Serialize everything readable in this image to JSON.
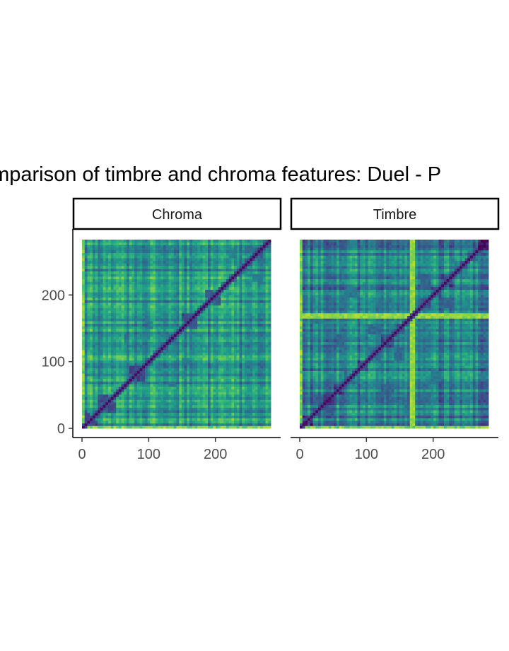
{
  "chart_data": {
    "type": "heatmap",
    "title": "Comparison of timbre and chroma features: Duel - P",
    "xlabel": "",
    "ylabel": "",
    "colormap": "viridis",
    "xlim": [
      0,
      283
    ],
    "ylim": [
      0,
      283
    ],
    "x_ticks": [
      0,
      100,
      200
    ],
    "y_ticks": [
      0,
      100,
      200
    ],
    "x_tick_labels": [
      "0",
      "100",
      "200"
    ],
    "y_tick_labels": [
      "0",
      "100",
      "200"
    ],
    "grid": false,
    "panels": [
      {
        "name": "Chroma",
        "segments": [
          0,
          12,
          24,
          38,
          50,
          62,
          72,
          84,
          96,
          106,
          118,
          128,
          140,
          150,
          160,
          174,
          186,
          196,
          208,
          220,
          232,
          244,
          256,
          270,
          283
        ],
        "blocks": [
          [
            0,
            1,
            0.2
          ],
          [
            2,
            3,
            0.22
          ],
          [
            6,
            7,
            0.21
          ],
          [
            13,
            14,
            0.24
          ],
          [
            16,
            17,
            0.3
          ],
          [
            5,
            11,
            0.42
          ],
          [
            8,
            13,
            0.45
          ],
          [
            19,
            22,
            0.44
          ]
        ],
        "base_level": 0.52
      },
      {
        "name": "Timbre",
        "segments": [
          0,
          18,
          34,
          52,
          68,
          88,
          104,
          122,
          140,
          158,
          166,
          180,
          196,
          214,
          232,
          250,
          266,
          283
        ],
        "blocks": [
          [
            1,
            2,
            0.3
          ],
          [
            3,
            7,
            0.34
          ],
          [
            6,
            8,
            0.36
          ],
          [
            11,
            13,
            0.33
          ],
          [
            4,
            12,
            0.4
          ],
          [
            1,
            9,
            0.42
          ]
        ],
        "bright_lines": [
          166,
          170
        ],
        "base_level": 0.42
      }
    ]
  }
}
